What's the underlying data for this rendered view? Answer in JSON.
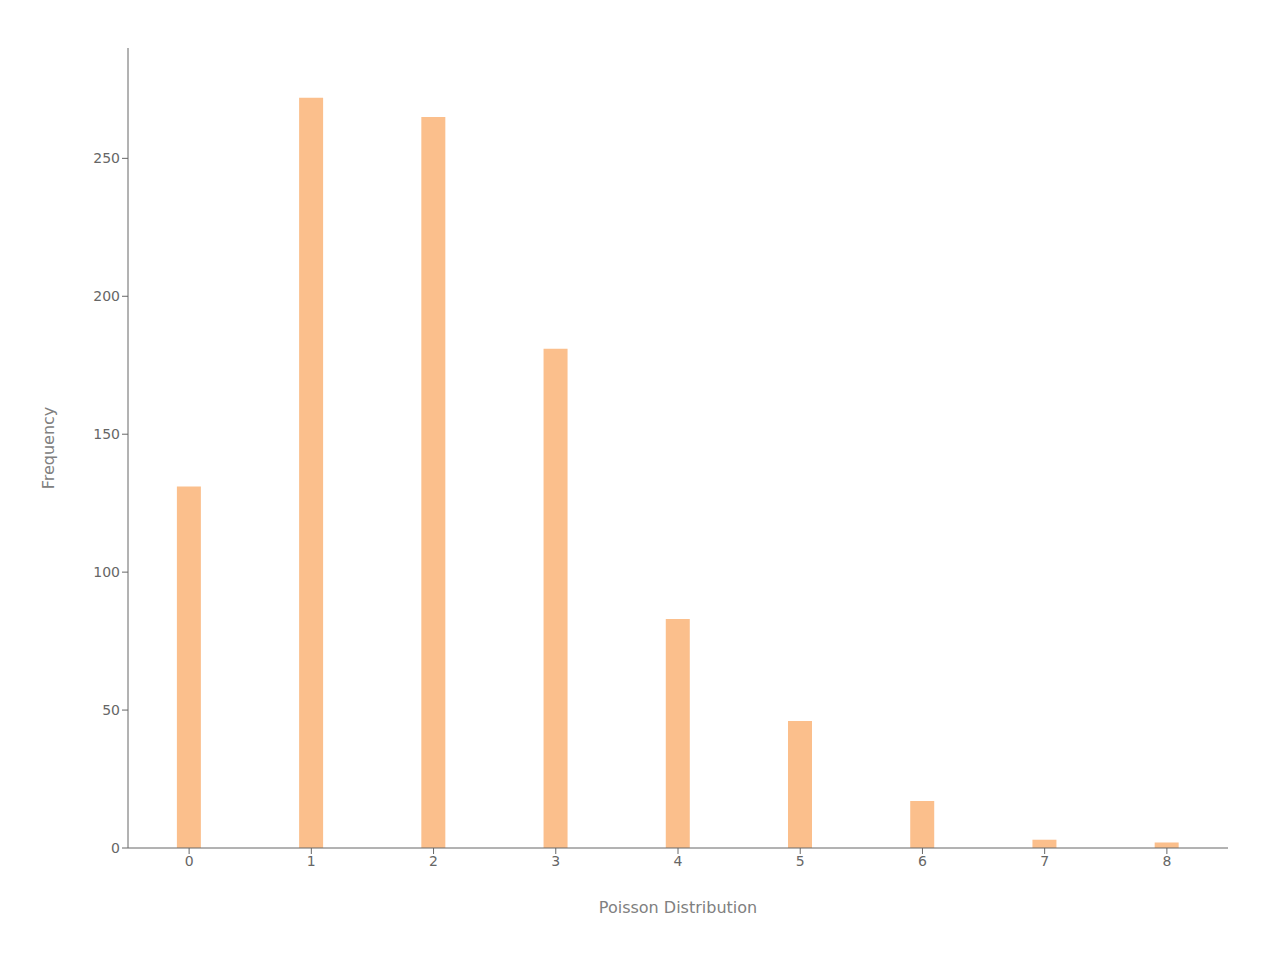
{
  "chart_data": {
    "type": "bar",
    "categories": [
      0,
      1,
      2,
      3,
      4,
      5,
      6,
      7,
      8
    ],
    "values": [
      131,
      272,
      265,
      181,
      83,
      46,
      17,
      3,
      2
    ],
    "color": "#FBBF8C",
    "xlabel": "Poisson Distribution",
    "ylabel": "Frequency",
    "ylim": [
      0,
      290
    ],
    "yticks": [
      0,
      50,
      100,
      150,
      200,
      250
    ],
    "grid": false
  }
}
